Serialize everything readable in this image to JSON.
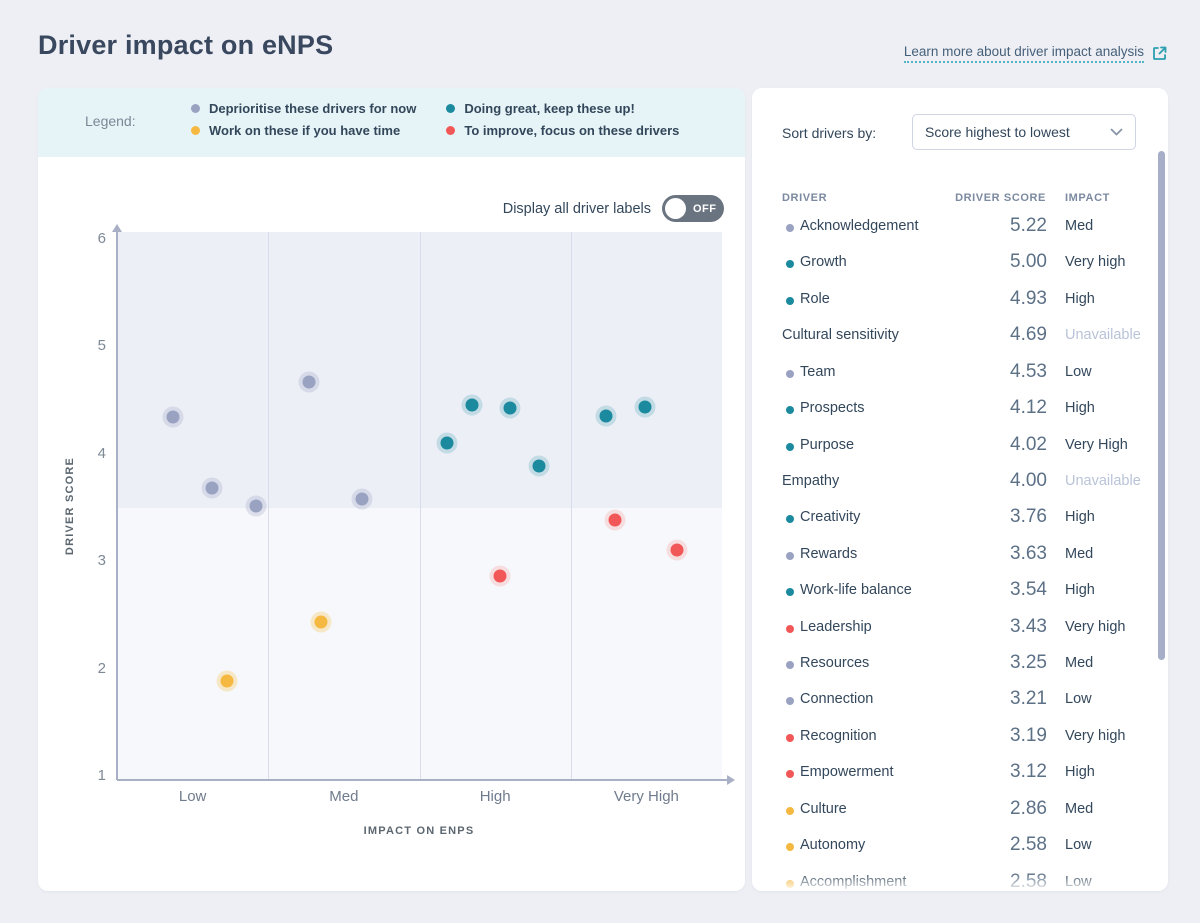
{
  "page": {
    "title": "Driver impact on eNPS"
  },
  "header": {
    "learn_more": "Learn more about driver impact analysis"
  },
  "legend": {
    "label": "Legend:",
    "items": [
      {
        "color": "gray",
        "text": "Deprioritise these drivers for now"
      },
      {
        "color": "yellow",
        "text": "Work on these if you have time"
      },
      {
        "color": "teal",
        "text": "Doing great, keep these up!"
      },
      {
        "color": "red",
        "text": "To improve, focus on these drivers"
      }
    ]
  },
  "toggle": {
    "label": "Display all driver labels",
    "state": "OFF"
  },
  "chart_data": {
    "type": "scatter",
    "xlabel": "IMPACT ON ENPS",
    "ylabel": "DRIVER SCORE",
    "x_categories": [
      "Low",
      "Med",
      "High",
      "Very High"
    ],
    "y_ticks": [
      1,
      2,
      3,
      4,
      5,
      6
    ],
    "ylim": [
      1,
      6
    ],
    "quadrant_split_score": 3.5,
    "grid": "quadrant dividers only",
    "points": [
      {
        "x": 0.37,
        "score": 4.34,
        "color": "gray"
      },
      {
        "x": 0.63,
        "score": 3.68,
        "color": "gray"
      },
      {
        "x": 0.92,
        "score": 3.51,
        "color": "gray"
      },
      {
        "x": 0.73,
        "score": 1.88,
        "color": "yellow"
      },
      {
        "x": 1.27,
        "score": 4.67,
        "color": "gray"
      },
      {
        "x": 1.62,
        "score": 3.58,
        "color": "gray"
      },
      {
        "x": 1.35,
        "score": 2.43,
        "color": "yellow"
      },
      {
        "x": 2.18,
        "score": 4.1,
        "color": "teal"
      },
      {
        "x": 2.35,
        "score": 4.45,
        "color": "teal"
      },
      {
        "x": 2.6,
        "score": 4.43,
        "color": "teal"
      },
      {
        "x": 2.79,
        "score": 3.89,
        "color": "teal"
      },
      {
        "x": 2.53,
        "score": 2.86,
        "color": "red"
      },
      {
        "x": 3.23,
        "score": 4.35,
        "color": "teal"
      },
      {
        "x": 3.49,
        "score": 4.44,
        "color": "teal"
      },
      {
        "x": 3.29,
        "score": 3.38,
        "color": "red"
      },
      {
        "x": 3.7,
        "score": 3.1,
        "color": "red"
      }
    ]
  },
  "sidebar": {
    "sort_label": "Sort drivers by:",
    "sort_value": "Score highest to lowest",
    "columns": [
      "DRIVER",
      "DRIVER SCORE",
      "IMPACT"
    ],
    "rows": [
      {
        "dot": "gray",
        "name": "Acknowledgement",
        "score": "5.22",
        "impact": "Med"
      },
      {
        "dot": "teal",
        "name": "Growth",
        "score": "5.00",
        "impact": "Very high"
      },
      {
        "dot": "teal",
        "name": "Role",
        "score": "4.93",
        "impact": "High"
      },
      {
        "dot": "none",
        "name": "Cultural sensitivity",
        "score": "4.69",
        "impact": "Unavailable"
      },
      {
        "dot": "gray",
        "name": "Team",
        "score": "4.53",
        "impact": "Low"
      },
      {
        "dot": "teal",
        "name": "Prospects",
        "score": "4.12",
        "impact": "High"
      },
      {
        "dot": "teal",
        "name": "Purpose",
        "score": "4.02",
        "impact": "Very High"
      },
      {
        "dot": "none",
        "name": "Empathy",
        "score": "4.00",
        "impact": "Unavailable"
      },
      {
        "dot": "teal",
        "name": "Creativity",
        "score": "3.76",
        "impact": "High"
      },
      {
        "dot": "gray",
        "name": "Rewards",
        "score": "3.63",
        "impact": "Med"
      },
      {
        "dot": "teal",
        "name": "Work-life balance",
        "score": "3.54",
        "impact": "High"
      },
      {
        "dot": "red",
        "name": "Leadership",
        "score": "3.43",
        "impact": "Very high"
      },
      {
        "dot": "gray",
        "name": "Resources",
        "score": "3.25",
        "impact": "Med"
      },
      {
        "dot": "gray",
        "name": "Connection",
        "score": "3.21",
        "impact": "Low"
      },
      {
        "dot": "red",
        "name": "Recognition",
        "score": "3.19",
        "impact": "Very high"
      },
      {
        "dot": "red",
        "name": "Empowerment",
        "score": "3.12",
        "impact": "High"
      },
      {
        "dot": "yellow",
        "name": "Culture",
        "score": "2.86",
        "impact": "Med"
      },
      {
        "dot": "yellow",
        "name": "Autonomy",
        "score": "2.58",
        "impact": "Low"
      },
      {
        "dot": "yellow",
        "name": "Accomplishment",
        "score": "2.58",
        "impact": "Low"
      }
    ]
  },
  "colors": {
    "gray": "#9aa2c2",
    "yellow": "#f5b942",
    "teal": "#1b8a9e",
    "red": "#f25757",
    "halo_gray": "rgba(154,162,194,0.28)",
    "halo_yellow": "rgba(245,185,66,0.28)",
    "halo_teal": "rgba(27,138,158,0.20)",
    "halo_red": "rgba(242,87,87,0.16)",
    "accent_teal": "#2d9fb0",
    "region_upper": "#edeff6",
    "region_lower": "#f7f8fb"
  }
}
